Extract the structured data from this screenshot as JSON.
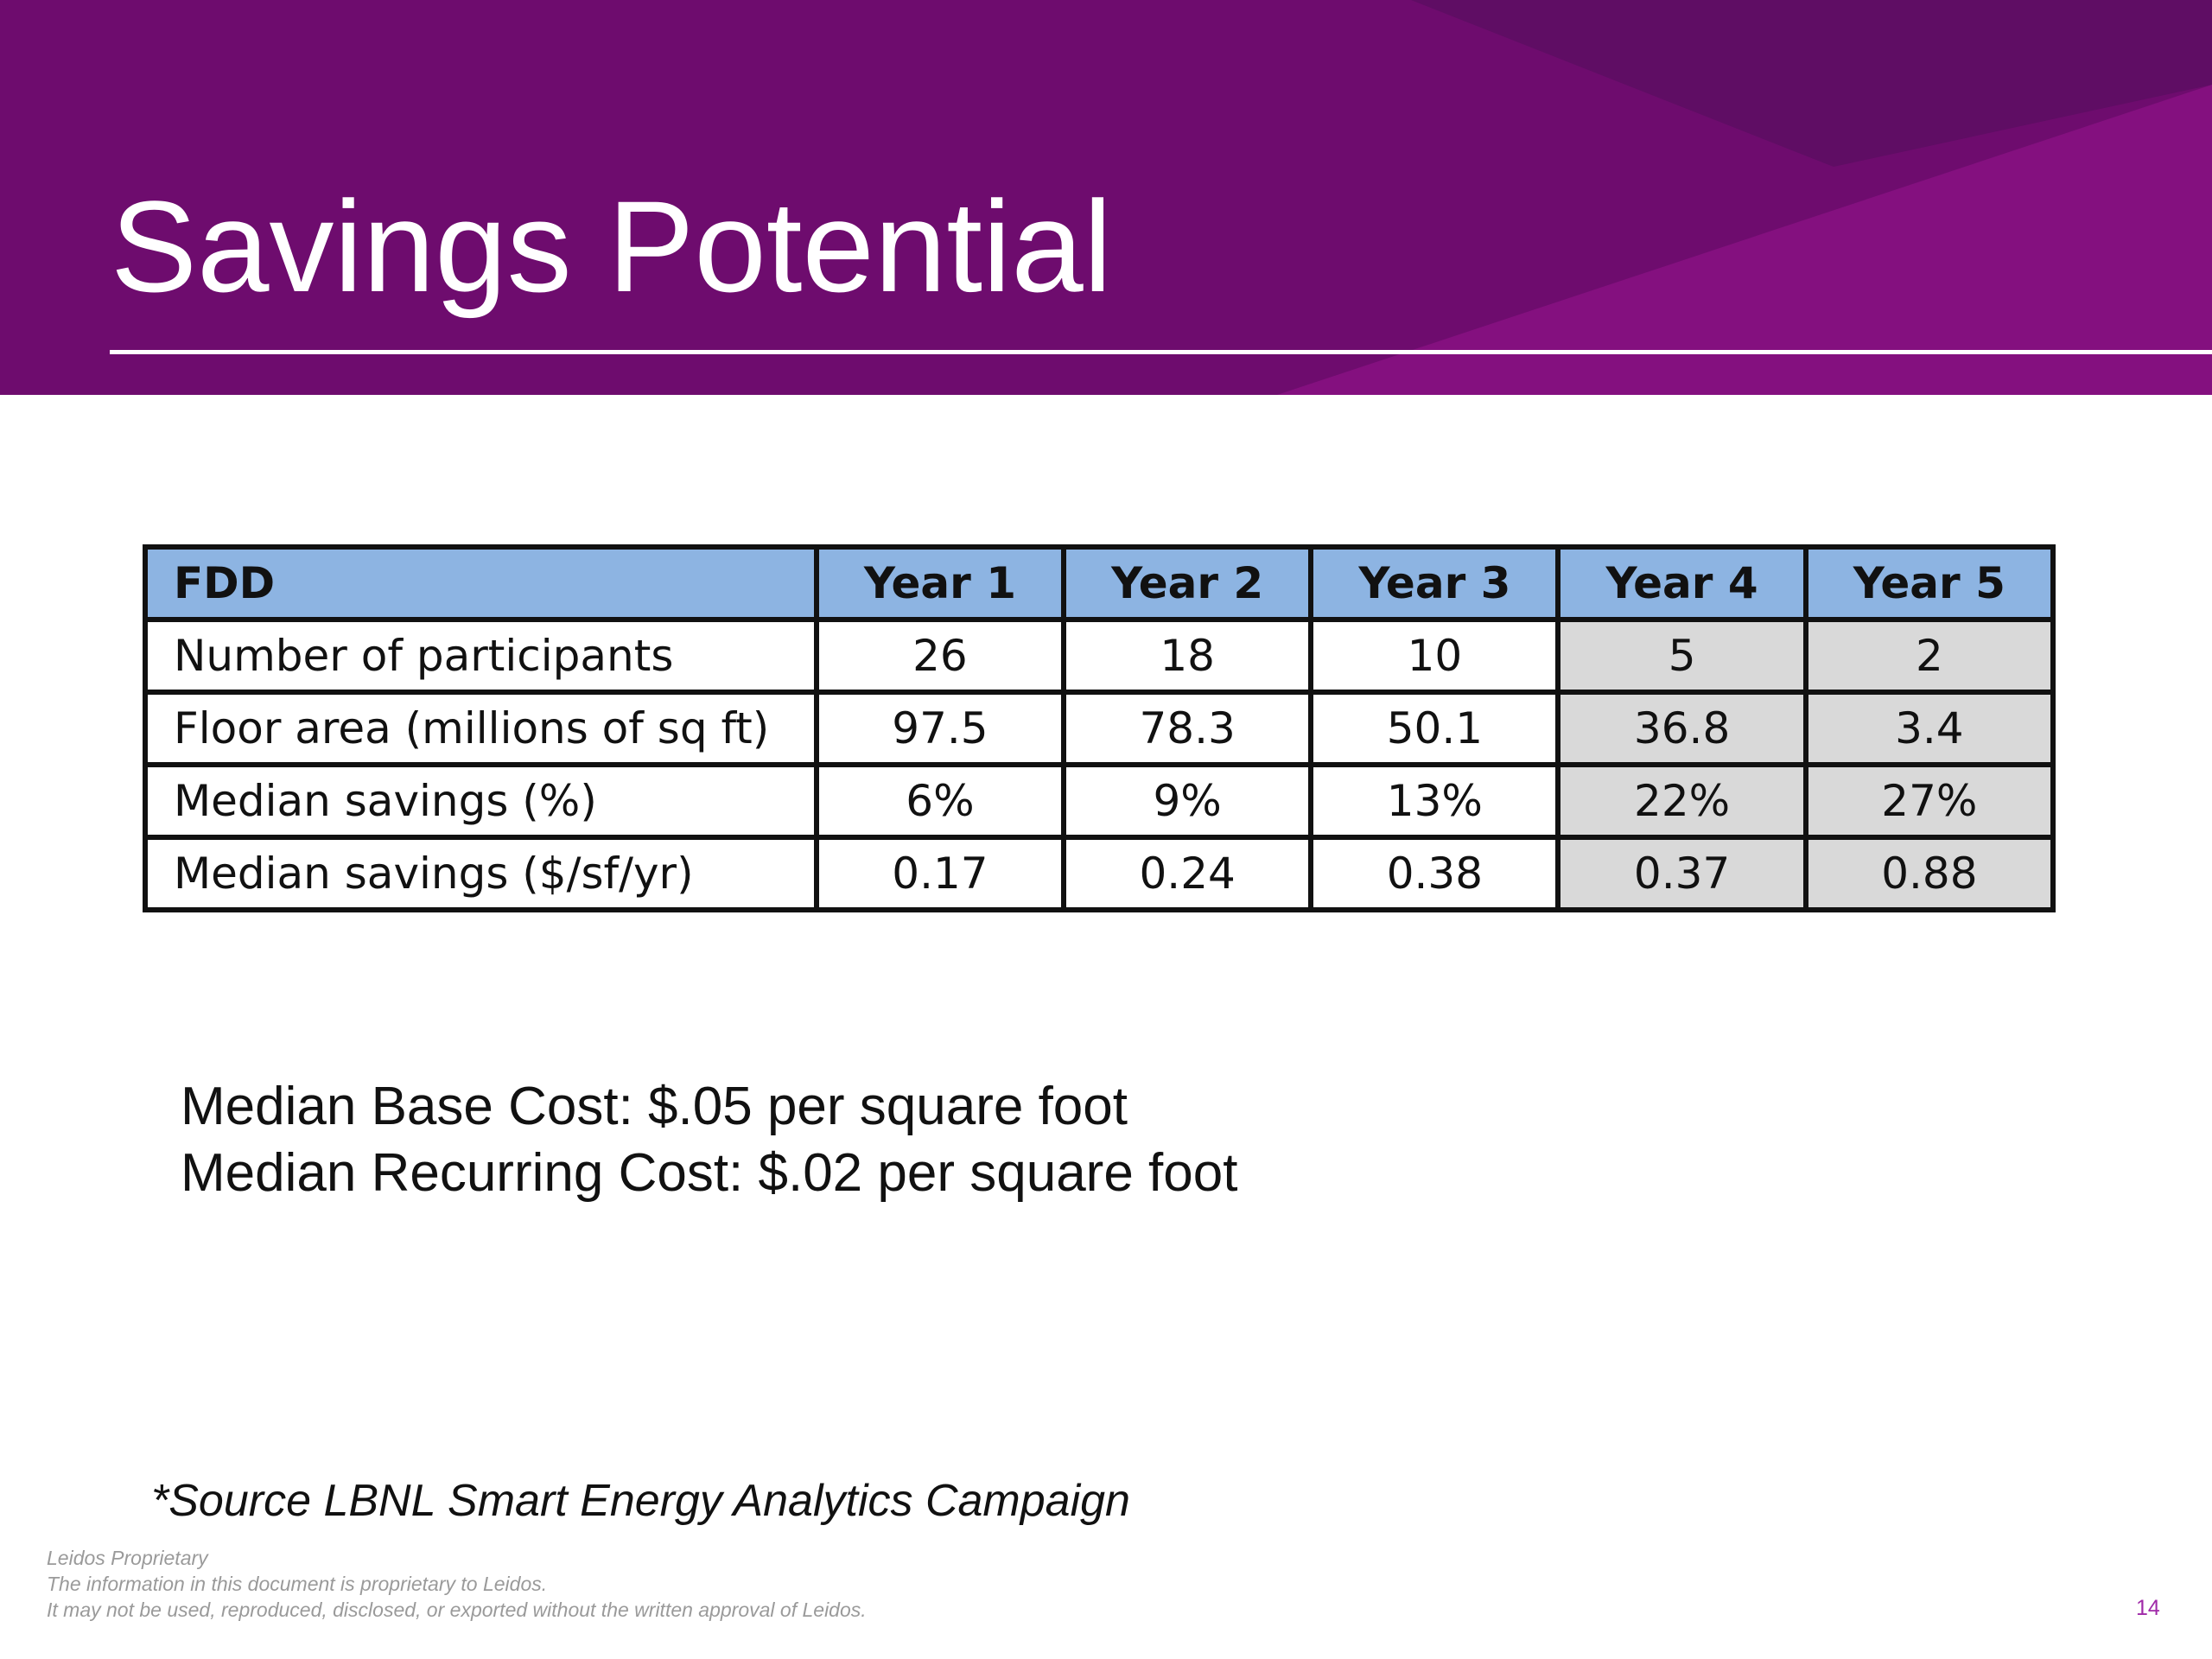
{
  "title": "Savings Potential",
  "table": {
    "headers": [
      "FDD",
      "Year 1",
      "Year 2",
      "Year 3",
      "Year 4",
      "Year 5"
    ],
    "rows": [
      [
        "Number of participants",
        "26",
        "18",
        "10",
        "5",
        "2"
      ],
      [
        "Floor area (millions of sq ft)",
        "97.5",
        "78.3",
        "50.1",
        "36.8",
        "3.4"
      ],
      [
        "Median savings (%)",
        "6%",
        "9%",
        "13%",
        "22%",
        "27%"
      ],
      [
        "Median savings ($/sf/yr)",
        "0.17",
        "0.24",
        "0.38",
        "0.37",
        "0.88"
      ]
    ]
  },
  "costs": [
    "Median Base Cost:  $.05 per square foot",
    "Median Recurring Cost:  $.02 per square foot"
  ],
  "source": "*Source LBNL Smart Energy Analytics Campaign",
  "footer": [
    "Leidos Proprietary",
    "The information in this document is proprietary to Leidos.",
    "It may not be used, reproduced, disclosed, or exported without the written approval of Leidos."
  ],
  "page_number": "14",
  "colors": {
    "header": "#6E0C6E",
    "table_header": "#8DB4E2",
    "shaded": "#D9D9D9"
  }
}
